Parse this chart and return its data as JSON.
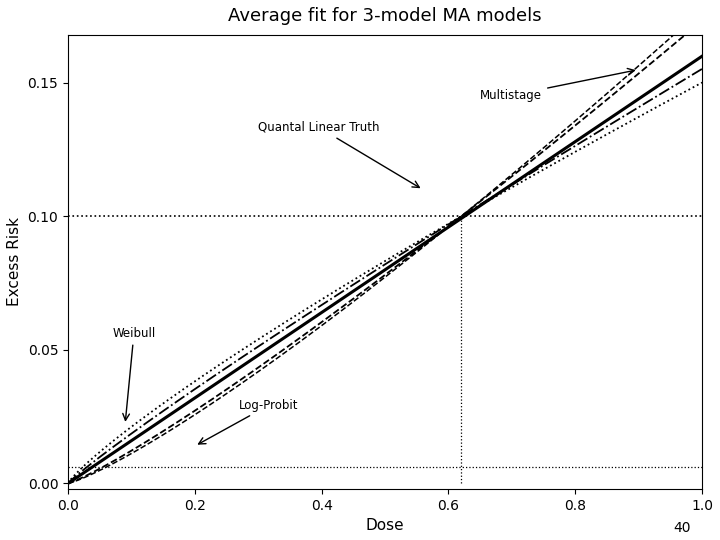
{
  "title": "Average fit for 3-model MA models",
  "xlabel": "Dose",
  "ylabel": "Excess Risk",
  "xlim": [
    0.0,
    1.0
  ],
  "ylim": [
    -0.002,
    0.168
  ],
  "yticks": [
    0.0,
    0.05,
    0.1,
    0.15
  ],
  "xticks": [
    0.0,
    0.2,
    0.4,
    0.6,
    0.8,
    1.0
  ],
  "hline1_y": 0.1,
  "hline2_y": 0.006,
  "vline_x": 0.62,
  "page_number": "40",
  "background_color": "#ffffff"
}
